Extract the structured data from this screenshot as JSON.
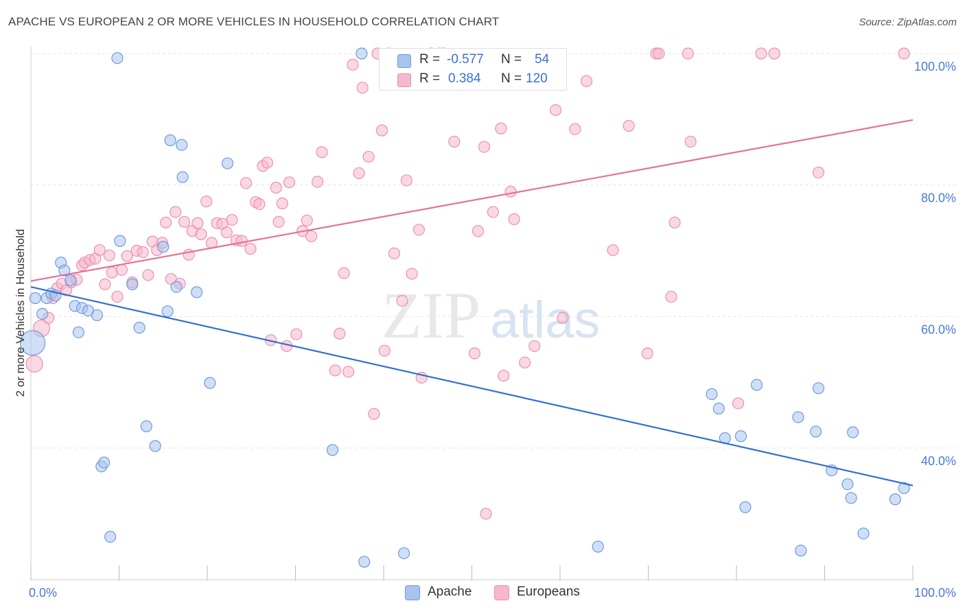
{
  "header": {
    "title": "APACHE VS EUROPEAN 2 OR MORE VEHICLES IN HOUSEHOLD CORRELATION CHART",
    "source": "Source: ZipAtlas.com"
  },
  "legend": {
    "rows": [
      {
        "r_label": "R =",
        "r_value": "-0.577",
        "n_label": "N =",
        "n_value": "54",
        "color": "#a9c4ec"
      },
      {
        "r_label": "R =",
        "r_value": "0.384",
        "n_label": "N =",
        "n_value": "120",
        "color": "#f6b8cc"
      }
    ],
    "bottom": [
      {
        "label": "Apache",
        "color": "#a9c4ec"
      },
      {
        "label": "Europeans",
        "color": "#f6b8cc"
      }
    ]
  },
  "watermark": {
    "zip": "ZIP",
    "atlas": "atlas"
  },
  "colors": {
    "apache_fill": "#a9c4ec",
    "apache_stroke": "#6c9ae0",
    "apache_line": "#2f6fd1",
    "euro_fill": "#f6b8cc",
    "euro_stroke": "#ec8fae",
    "euro_line": "#e4709a",
    "tick_label": "#4a7bd0",
    "grid": "#e3e3e3"
  },
  "chart_data": {
    "type": "scatter",
    "title": "APACHE VS EUROPEAN 2 OR MORE VEHICLES IN HOUSEHOLD CORRELATION CHART",
    "xlabel": "",
    "ylabel": "2 or more Vehicles in Household",
    "xlim": [
      0,
      100
    ],
    "ylim": [
      20,
      102
    ],
    "x_tick_labels": [
      "0.0%",
      "100.0%"
    ],
    "y_ticks": [
      40,
      60,
      80,
      100
    ],
    "y_tick_labels": [
      "40.0%",
      "60.0%",
      "80.0%",
      "100.0%"
    ],
    "grid": true,
    "legend_position": "top-center",
    "series": [
      {
        "name": "Apache",
        "trend": {
          "x": [
            0,
            100
          ],
          "y": [
            64.5,
            34.3
          ]
        },
        "points": [
          [
            0.2,
            56,
            3
          ],
          [
            0.5,
            62.8,
            1
          ],
          [
            1.3,
            60.4,
            1
          ],
          [
            1.8,
            62.8,
            1
          ],
          [
            2.3,
            63.5,
            1
          ],
          [
            2.8,
            63.2,
            1
          ],
          [
            3.4,
            68.2,
            1
          ],
          [
            3.8,
            67.0,
            1
          ],
          [
            4.5,
            65.5,
            1
          ],
          [
            5.0,
            61.6,
            1
          ],
          [
            5.4,
            57.6,
            1
          ],
          [
            5.8,
            61.3,
            1
          ],
          [
            6.5,
            60.9,
            1
          ],
          [
            7.5,
            60.2,
            1
          ],
          [
            8.0,
            37.2,
            1
          ],
          [
            8.3,
            37.8,
            1
          ],
          [
            9.0,
            26.5,
            1
          ],
          [
            9.8,
            99.3,
            1
          ],
          [
            10.1,
            71.5,
            1
          ],
          [
            11.5,
            64.9,
            1
          ],
          [
            12.3,
            58.3,
            1
          ],
          [
            13.1,
            43.3,
            1
          ],
          [
            14.1,
            40.3,
            1
          ],
          [
            15.0,
            70.6,
            1
          ],
          [
            15.5,
            60.8,
            1
          ],
          [
            15.8,
            86.8,
            1
          ],
          [
            16.5,
            64.5,
            1
          ],
          [
            17.1,
            86.1,
            1
          ],
          [
            17.2,
            81.2,
            1
          ],
          [
            18.8,
            63.7,
            1
          ],
          [
            20.3,
            49.9,
            1
          ],
          [
            22.3,
            83.3,
            1
          ],
          [
            34.2,
            39.7,
            1
          ],
          [
            37.5,
            100.0,
            1
          ],
          [
            37.8,
            22.7,
            1
          ],
          [
            42.3,
            24.0,
            1
          ],
          [
            64.3,
            25.0,
            1
          ],
          [
            77.2,
            48.2,
            1
          ],
          [
            78.0,
            46.0,
            1
          ],
          [
            78.7,
            41.5,
            1
          ],
          [
            80.5,
            41.8,
            1
          ],
          [
            81.0,
            31.0,
            1
          ],
          [
            82.3,
            49.6,
            1
          ],
          [
            87.0,
            44.7,
            1
          ],
          [
            87.3,
            24.4,
            1
          ],
          [
            89.0,
            42.5,
            1
          ],
          [
            89.3,
            49.1,
            1
          ],
          [
            90.8,
            36.6,
            1
          ],
          [
            92.6,
            34.5,
            1
          ],
          [
            93.0,
            32.4,
            1
          ],
          [
            93.2,
            42.4,
            1
          ],
          [
            94.4,
            27.0,
            1
          ],
          [
            98.0,
            32.2,
            1
          ],
          [
            99.0,
            33.9,
            1
          ]
        ]
      },
      {
        "name": "Europeans",
        "trend": {
          "x": [
            0,
            100
          ],
          "y": [
            65.4,
            89.9
          ]
        },
        "points": [
          [
            0.4,
            52.8,
            2
          ],
          [
            1.2,
            58.2,
            2
          ],
          [
            2.0,
            59.8,
            1
          ],
          [
            2.5,
            62.8,
            1
          ],
          [
            3.0,
            64.3,
            1
          ],
          [
            3.5,
            65.0,
            1
          ],
          [
            4.0,
            64.0,
            1
          ],
          [
            4.6,
            65.2,
            1
          ],
          [
            5.2,
            65.6,
            1
          ],
          [
            5.8,
            67.8,
            1
          ],
          [
            6.1,
            68.2,
            1
          ],
          [
            6.7,
            68.6,
            1
          ],
          [
            7.3,
            68.8,
            1
          ],
          [
            7.8,
            70.1,
            1
          ],
          [
            8.4,
            64.9,
            1
          ],
          [
            8.9,
            69.3,
            1
          ],
          [
            9.2,
            66.7,
            1
          ],
          [
            9.8,
            63.0,
            1
          ],
          [
            10.3,
            67.1,
            1
          ],
          [
            10.9,
            69.2,
            1
          ],
          [
            11.5,
            65.2,
            1
          ],
          [
            12.0,
            70.0,
            1
          ],
          [
            12.7,
            69.8,
            1
          ],
          [
            13.3,
            66.3,
            1
          ],
          [
            13.8,
            71.4,
            1
          ],
          [
            14.3,
            70.1,
            1
          ],
          [
            14.9,
            71.2,
            1
          ],
          [
            15.3,
            74.3,
            1
          ],
          [
            15.9,
            65.7,
            1
          ],
          [
            16.4,
            75.9,
            1
          ],
          [
            16.9,
            65.0,
            1
          ],
          [
            17.4,
            74.4,
            1
          ],
          [
            17.9,
            69.4,
            1
          ],
          [
            18.3,
            73.0,
            1
          ],
          [
            18.9,
            74.2,
            1
          ],
          [
            19.3,
            72.5,
            1
          ],
          [
            19.9,
            77.5,
            1
          ],
          [
            20.5,
            71.2,
            1
          ],
          [
            21.1,
            74.2,
            1
          ],
          [
            21.7,
            74.1,
            1
          ],
          [
            22.2,
            72.8,
            1
          ],
          [
            22.8,
            74.7,
            1
          ],
          [
            23.3,
            71.6,
            1
          ],
          [
            23.9,
            71.5,
            1
          ],
          [
            24.4,
            80.3,
            1
          ],
          [
            24.9,
            70.3,
            1
          ],
          [
            25.5,
            77.4,
            1
          ],
          [
            25.9,
            77.1,
            1
          ],
          [
            26.3,
            82.9,
            1
          ],
          [
            26.8,
            83.4,
            1
          ],
          [
            27.2,
            56.4,
            1
          ],
          [
            27.8,
            79.6,
            1
          ],
          [
            28.1,
            74.4,
            1
          ],
          [
            28.5,
            77.2,
            1
          ],
          [
            29.0,
            55.5,
            1
          ],
          [
            29.3,
            80.4,
            1
          ],
          [
            30.1,
            57.3,
            1
          ],
          [
            30.8,
            73.0,
            1
          ],
          [
            31.3,
            74.6,
            1
          ],
          [
            31.8,
            72.2,
            1
          ],
          [
            32.5,
            80.5,
            1
          ],
          [
            33.0,
            85.0,
            1
          ],
          [
            34.5,
            51.8,
            1
          ],
          [
            35.0,
            57.4,
            1
          ],
          [
            35.5,
            66.6,
            1
          ],
          [
            36.0,
            51.6,
            1
          ],
          [
            36.5,
            98.3,
            1
          ],
          [
            37.2,
            81.8,
            1
          ],
          [
            37.6,
            94.8,
            1
          ],
          [
            38.3,
            84.3,
            1
          ],
          [
            38.9,
            45.2,
            1
          ],
          [
            39.3,
            100.0,
            1
          ],
          [
            39.8,
            88.3,
            1
          ],
          [
            40.1,
            54.8,
            1
          ],
          [
            40.6,
            100.0,
            1
          ],
          [
            41.2,
            69.6,
            1
          ],
          [
            42.1,
            62.4,
            1
          ],
          [
            42.6,
            80.7,
            1
          ],
          [
            43.2,
            66.5,
            1
          ],
          [
            44.0,
            73.2,
            1
          ],
          [
            44.3,
            50.7,
            1
          ],
          [
            45.4,
            100.0,
            1
          ],
          [
            45.8,
            97.5,
            1
          ],
          [
            46.3,
            100.0,
            1
          ],
          [
            46.8,
            100.0,
            1
          ],
          [
            47.2,
            95.6,
            1
          ],
          [
            48.0,
            86.6,
            1
          ],
          [
            49.3,
            97.0,
            1
          ],
          [
            50.3,
            54.4,
            1
          ],
          [
            50.7,
            73.0,
            1
          ],
          [
            51.4,
            85.8,
            1
          ],
          [
            51.6,
            30.0,
            1
          ],
          [
            52.4,
            75.9,
            1
          ],
          [
            53.3,
            88.6,
            1
          ],
          [
            53.6,
            51.0,
            1
          ],
          [
            54.4,
            79.0,
            1
          ],
          [
            54.8,
            74.8,
            1
          ],
          [
            56.0,
            53.0,
            1
          ],
          [
            57.1,
            55.5,
            1
          ],
          [
            59.5,
            91.4,
            1
          ],
          [
            60.3,
            59.8,
            1
          ],
          [
            61.7,
            88.5,
            1
          ],
          [
            63.0,
            95.8,
            1
          ],
          [
            66.0,
            70.1,
            1
          ],
          [
            67.8,
            89.0,
            1
          ],
          [
            69.9,
            54.4,
            1
          ],
          [
            70.9,
            100.0,
            1
          ],
          [
            71.2,
            100.0,
            1
          ],
          [
            72.6,
            63.0,
            1
          ],
          [
            73.0,
            74.3,
            1
          ],
          [
            74.5,
            100.0,
            1
          ],
          [
            74.8,
            86.6,
            1
          ],
          [
            80.2,
            46.8,
            1
          ],
          [
            82.8,
            100.0,
            1
          ],
          [
            84.3,
            100.0,
            1
          ],
          [
            89.3,
            81.9,
            1
          ],
          [
            99.0,
            100.0,
            1
          ]
        ]
      }
    ]
  }
}
